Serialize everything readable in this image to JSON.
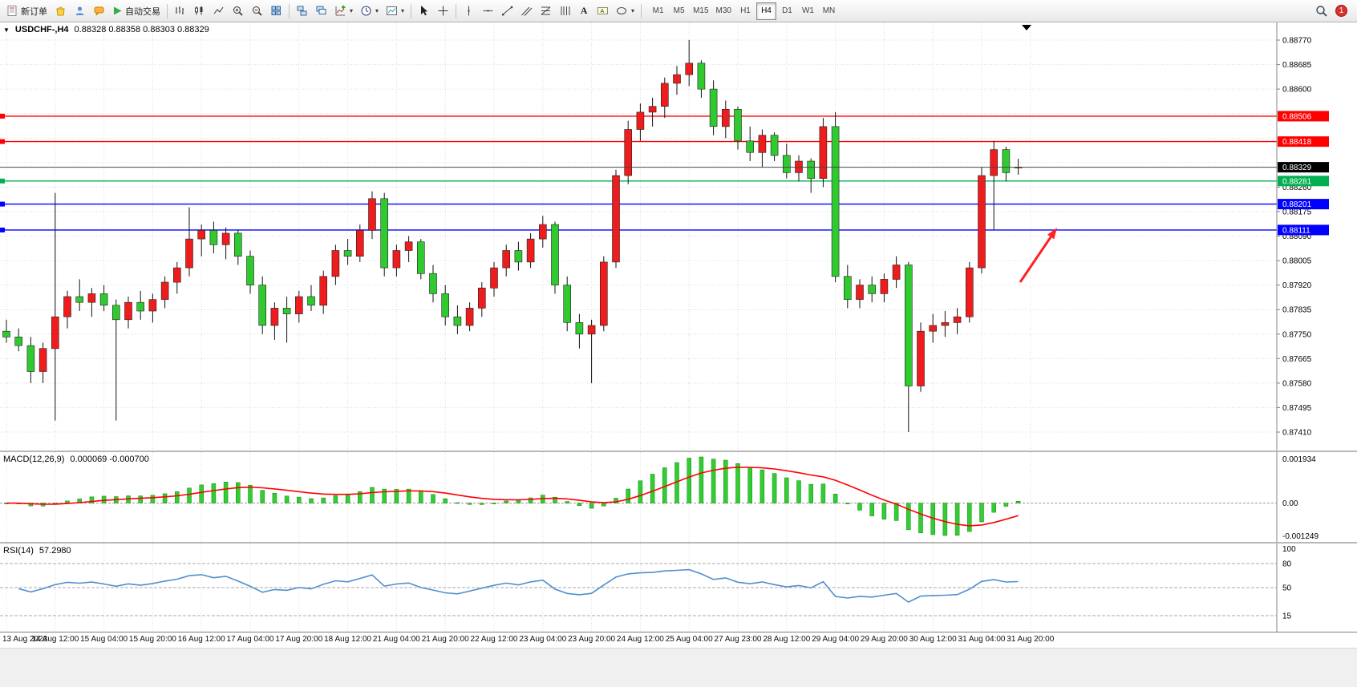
{
  "toolbar": {
    "new_order_label": "新订单",
    "auto_trading_label": "自动交易",
    "timeframes": [
      "M1",
      "M5",
      "M15",
      "M30",
      "H1",
      "H4",
      "D1",
      "W1",
      "MN"
    ],
    "active_timeframe": "H4",
    "notification_count": "1"
  },
  "chart": {
    "symbol_title": "USDCHF-,H4",
    "ohlc_text": "0.88328 0.88358 0.88303 0.88329"
  },
  "chart_data": [
    {
      "type": "candlestick",
      "title": "USDCHF-,H4",
      "symbol": "USDCHF-",
      "timeframe": "H4",
      "ylim": [
        0.8741,
        0.8877
      ],
      "y_grid_step": 0.00085,
      "y_tick_labels": [
        0.8877,
        0.88685,
        0.886,
        0.8826,
        0.88175,
        0.8809,
        0.88005,
        0.8792,
        0.87835,
        0.8775,
        0.87665,
        0.8758,
        0.87495,
        0.8741
      ],
      "x_labels": [
        "13 Aug 2023",
        "14 Aug 12:00",
        "15 Aug 04:00",
        "15 Aug 20:00",
        "16 Aug 12:00",
        "17 Aug 04:00",
        "17 Aug 20:00",
        "18 Aug 12:00",
        "21 Aug 04:00",
        "21 Aug 20:00",
        "22 Aug 12:00",
        "23 Aug 04:00",
        "23 Aug 20:00",
        "24 Aug 12:00",
        "25 Aug 04:00",
        "27 Aug 23:00",
        "28 Aug 12:00",
        "29 Aug 04:00",
        "29 Aug 20:00",
        "30 Aug 12:00",
        "31 Aug 04:00",
        "31 Aug 20:00"
      ],
      "bars_per_label": 4,
      "bull_color": "#ee1c1c",
      "bear_color": "#30c930",
      "levels": [
        {
          "value": 0.88506,
          "color": "#ff0000"
        },
        {
          "value": 0.88418,
          "color": "#ff0000"
        },
        {
          "value": 0.88281,
          "color": "#00b050"
        },
        {
          "value": 0.88201,
          "color": "#0000ff"
        },
        {
          "value": 0.88111,
          "color": "#0000ff"
        }
      ],
      "current_price": {
        "value": 0.88329,
        "color": "#000000"
      },
      "arrow_annotation": {
        "from": [
          1272,
          324
        ],
        "to": [
          1318,
          256
        ],
        "color": "#ff2222"
      },
      "candles": [
        [
          0.8776,
          0.878,
          0.8772,
          0.8774
        ],
        [
          0.8774,
          0.8777,
          0.8769,
          0.8771
        ],
        [
          0.8771,
          0.8774,
          0.8758,
          0.8762
        ],
        [
          0.8762,
          0.8772,
          0.8758,
          0.877
        ],
        [
          0.877,
          0.8824,
          0.8745,
          0.8781
        ],
        [
          0.8781,
          0.879,
          0.8777,
          0.8788
        ],
        [
          0.8788,
          0.8794,
          0.8783,
          0.8786
        ],
        [
          0.8786,
          0.8791,
          0.8781,
          0.8789
        ],
        [
          0.8789,
          0.8792,
          0.8783,
          0.8785
        ],
        [
          0.8785,
          0.8787,
          0.8745,
          0.878
        ],
        [
          0.878,
          0.8788,
          0.8777,
          0.8786
        ],
        [
          0.8786,
          0.879,
          0.878,
          0.8783
        ],
        [
          0.8783,
          0.8789,
          0.8779,
          0.8787
        ],
        [
          0.8787,
          0.8795,
          0.8784,
          0.8793
        ],
        [
          0.8793,
          0.88,
          0.8789,
          0.8798
        ],
        [
          0.8798,
          0.8819,
          0.8795,
          0.8808
        ],
        [
          0.8808,
          0.8813,
          0.8802,
          0.8811
        ],
        [
          0.8811,
          0.8814,
          0.8803,
          0.8806
        ],
        [
          0.8806,
          0.8812,
          0.8801,
          0.881
        ],
        [
          0.881,
          0.8811,
          0.8799,
          0.8802
        ],
        [
          0.8802,
          0.8804,
          0.8789,
          0.8792
        ],
        [
          0.8792,
          0.8795,
          0.8775,
          0.8778
        ],
        [
          0.8778,
          0.8786,
          0.8773,
          0.8784
        ],
        [
          0.8784,
          0.8788,
          0.8772,
          0.8782
        ],
        [
          0.8782,
          0.879,
          0.8779,
          0.8788
        ],
        [
          0.8788,
          0.8792,
          0.8783,
          0.8785
        ],
        [
          0.8785,
          0.8797,
          0.8782,
          0.8795
        ],
        [
          0.8795,
          0.8806,
          0.8792,
          0.8804
        ],
        [
          0.8804,
          0.8808,
          0.8799,
          0.8802
        ],
        [
          0.8802,
          0.8813,
          0.88,
          0.8811
        ],
        [
          0.8811,
          0.88245,
          0.8808,
          0.8822
        ],
        [
          0.8822,
          0.8824,
          0.8795,
          0.8798
        ],
        [
          0.8798,
          0.8806,
          0.8795,
          0.8804
        ],
        [
          0.8804,
          0.8809,
          0.88,
          0.8807
        ],
        [
          0.8807,
          0.8808,
          0.8794,
          0.8796
        ],
        [
          0.8796,
          0.8799,
          0.8786,
          0.8789
        ],
        [
          0.8789,
          0.8792,
          0.8778,
          0.8781
        ],
        [
          0.8781,
          0.8785,
          0.8775,
          0.8778
        ],
        [
          0.8778,
          0.8786,
          0.8776,
          0.8784
        ],
        [
          0.8784,
          0.8793,
          0.8781,
          0.8791
        ],
        [
          0.8791,
          0.88,
          0.8788,
          0.8798
        ],
        [
          0.8798,
          0.8806,
          0.8795,
          0.8804
        ],
        [
          0.8804,
          0.8807,
          0.8797,
          0.88
        ],
        [
          0.88,
          0.881,
          0.8798,
          0.8808
        ],
        [
          0.8808,
          0.8816,
          0.8805,
          0.8813
        ],
        [
          0.8813,
          0.8814,
          0.8789,
          0.8792
        ],
        [
          0.8792,
          0.8795,
          0.8776,
          0.8779
        ],
        [
          0.8779,
          0.8782,
          0.877,
          0.8775
        ],
        [
          0.8775,
          0.878,
          0.8758,
          0.8778
        ],
        [
          0.8778,
          0.8802,
          0.8776,
          0.88
        ],
        [
          0.88,
          0.8832,
          0.8798,
          0.883
        ],
        [
          0.883,
          0.8849,
          0.8827,
          0.8846
        ],
        [
          0.8846,
          0.8855,
          0.8842,
          0.8852
        ],
        [
          0.8852,
          0.8857,
          0.8847,
          0.8854
        ],
        [
          0.8854,
          0.8864,
          0.885,
          0.8862
        ],
        [
          0.8862,
          0.8868,
          0.8858,
          0.8865
        ],
        [
          0.8865,
          0.8877,
          0.8861,
          0.8869
        ],
        [
          0.8869,
          0.887,
          0.8857,
          0.886
        ],
        [
          0.886,
          0.8863,
          0.8844,
          0.8847
        ],
        [
          0.8847,
          0.8856,
          0.8843,
          0.8853
        ],
        [
          0.8853,
          0.8854,
          0.8839,
          0.8842
        ],
        [
          0.8842,
          0.8847,
          0.8835,
          0.8838
        ],
        [
          0.8838,
          0.8846,
          0.8833,
          0.8844
        ],
        [
          0.8844,
          0.8845,
          0.8835,
          0.8837
        ],
        [
          0.8837,
          0.8841,
          0.8829,
          0.8831
        ],
        [
          0.8831,
          0.8837,
          0.8828,
          0.8835
        ],
        [
          0.8835,
          0.8836,
          0.8824,
          0.8829
        ],
        [
          0.8829,
          0.885,
          0.8826,
          0.8847
        ],
        [
          0.8847,
          0.8852,
          0.8793,
          0.8795
        ],
        [
          0.8795,
          0.8799,
          0.8784,
          0.8787
        ],
        [
          0.8787,
          0.8794,
          0.8784,
          0.8792
        ],
        [
          0.8792,
          0.8795,
          0.8786,
          0.8789
        ],
        [
          0.8789,
          0.8796,
          0.8786,
          0.8794
        ],
        [
          0.8794,
          0.8802,
          0.8791,
          0.8799
        ],
        [
          0.8799,
          0.88,
          0.8741,
          0.8757
        ],
        [
          0.8757,
          0.8779,
          0.8755,
          0.8776
        ],
        [
          0.8776,
          0.8782,
          0.8772,
          0.8778
        ],
        [
          0.8778,
          0.8783,
          0.8774,
          0.8779
        ],
        [
          0.8779,
          0.8784,
          0.8775,
          0.8781
        ],
        [
          0.8781,
          0.88,
          0.8779,
          0.8798
        ],
        [
          0.8798,
          0.8833,
          0.8796,
          0.883
        ],
        [
          0.883,
          0.8842,
          0.8811,
          0.8839
        ],
        [
          0.8839,
          0.884,
          0.8828,
          0.8831
        ],
        [
          0.88328,
          0.88358,
          0.88303,
          0.88329
        ]
      ]
    },
    {
      "type": "bar",
      "name": "MACD",
      "label": "MACD(12,26,9)",
      "values_text": "0.000069 -0.000700",
      "fast": 12,
      "slow": 26,
      "signal_period": 9,
      "axis_labels": [
        "0.001934",
        "0.00",
        "-0.001249"
      ],
      "histogram_color": "#33cc33",
      "signal_color": "#ff0000"
    },
    {
      "type": "line",
      "name": "RSI",
      "label": "RSI(14)",
      "value_text": "57.2980",
      "period": 14,
      "axis_labels": [
        "100",
        "80",
        "50",
        "15"
      ],
      "levels": [
        80,
        50,
        15
      ],
      "line_color": "#4f8fce"
    }
  ]
}
